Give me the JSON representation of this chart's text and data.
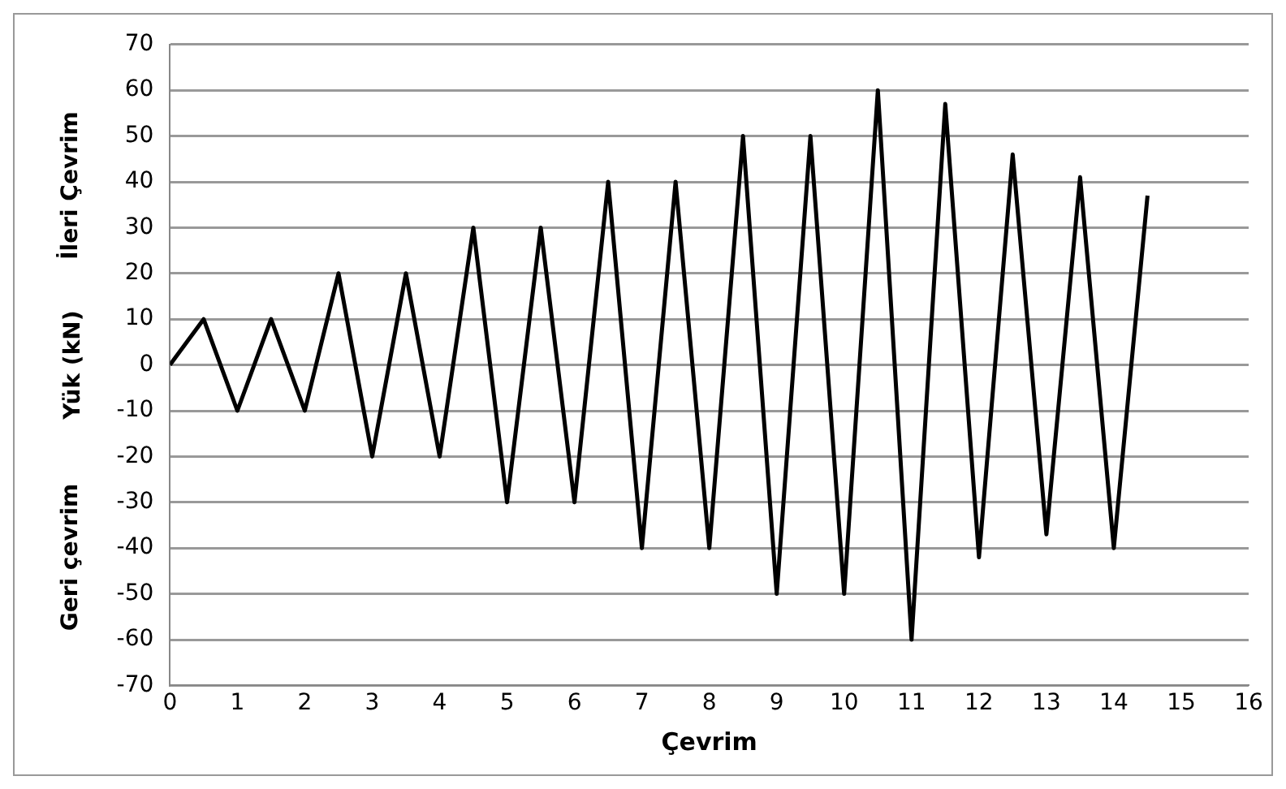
{
  "chart_data": {
    "type": "line",
    "xlabel": "Çevrim",
    "ylabel": "Yük (kN)",
    "annotations": [
      "İleri Çevrim",
      "Geri çevrim"
    ],
    "x": [
      0,
      0.5,
      1,
      1.5,
      2,
      2.5,
      3,
      3.5,
      4,
      4.5,
      5,
      5.5,
      6,
      6.5,
      7,
      7.5,
      8,
      8.5,
      9,
      9.5,
      10,
      10.5,
      11,
      11.5,
      12,
      12.5,
      13,
      13.5,
      14,
      14.5
    ],
    "series": [
      {
        "color": "#000000",
        "values": [
          0,
          10,
          -10,
          10,
          -10,
          20,
          -20,
          20,
          -20,
          30,
          -30,
          30,
          -30,
          40,
          -40,
          40,
          -40,
          50,
          -50,
          50,
          -50,
          60,
          -60,
          57,
          -42,
          46,
          -37,
          41,
          -40,
          37
        ]
      }
    ],
    "xlim": [
      0,
      16
    ],
    "xticks": [
      0,
      1,
      2,
      3,
      4,
      5,
      6,
      7,
      8,
      9,
      10,
      11,
      12,
      13,
      14,
      15,
      16
    ],
    "ylim": [
      -70,
      70
    ],
    "yticks": [
      -70,
      -60,
      -50,
      -40,
      -30,
      -20,
      -10,
      0,
      10,
      20,
      30,
      40,
      50,
      60,
      70
    ],
    "grid": "y",
    "legend": false,
    "marker": "none",
    "line_style": "solid"
  }
}
